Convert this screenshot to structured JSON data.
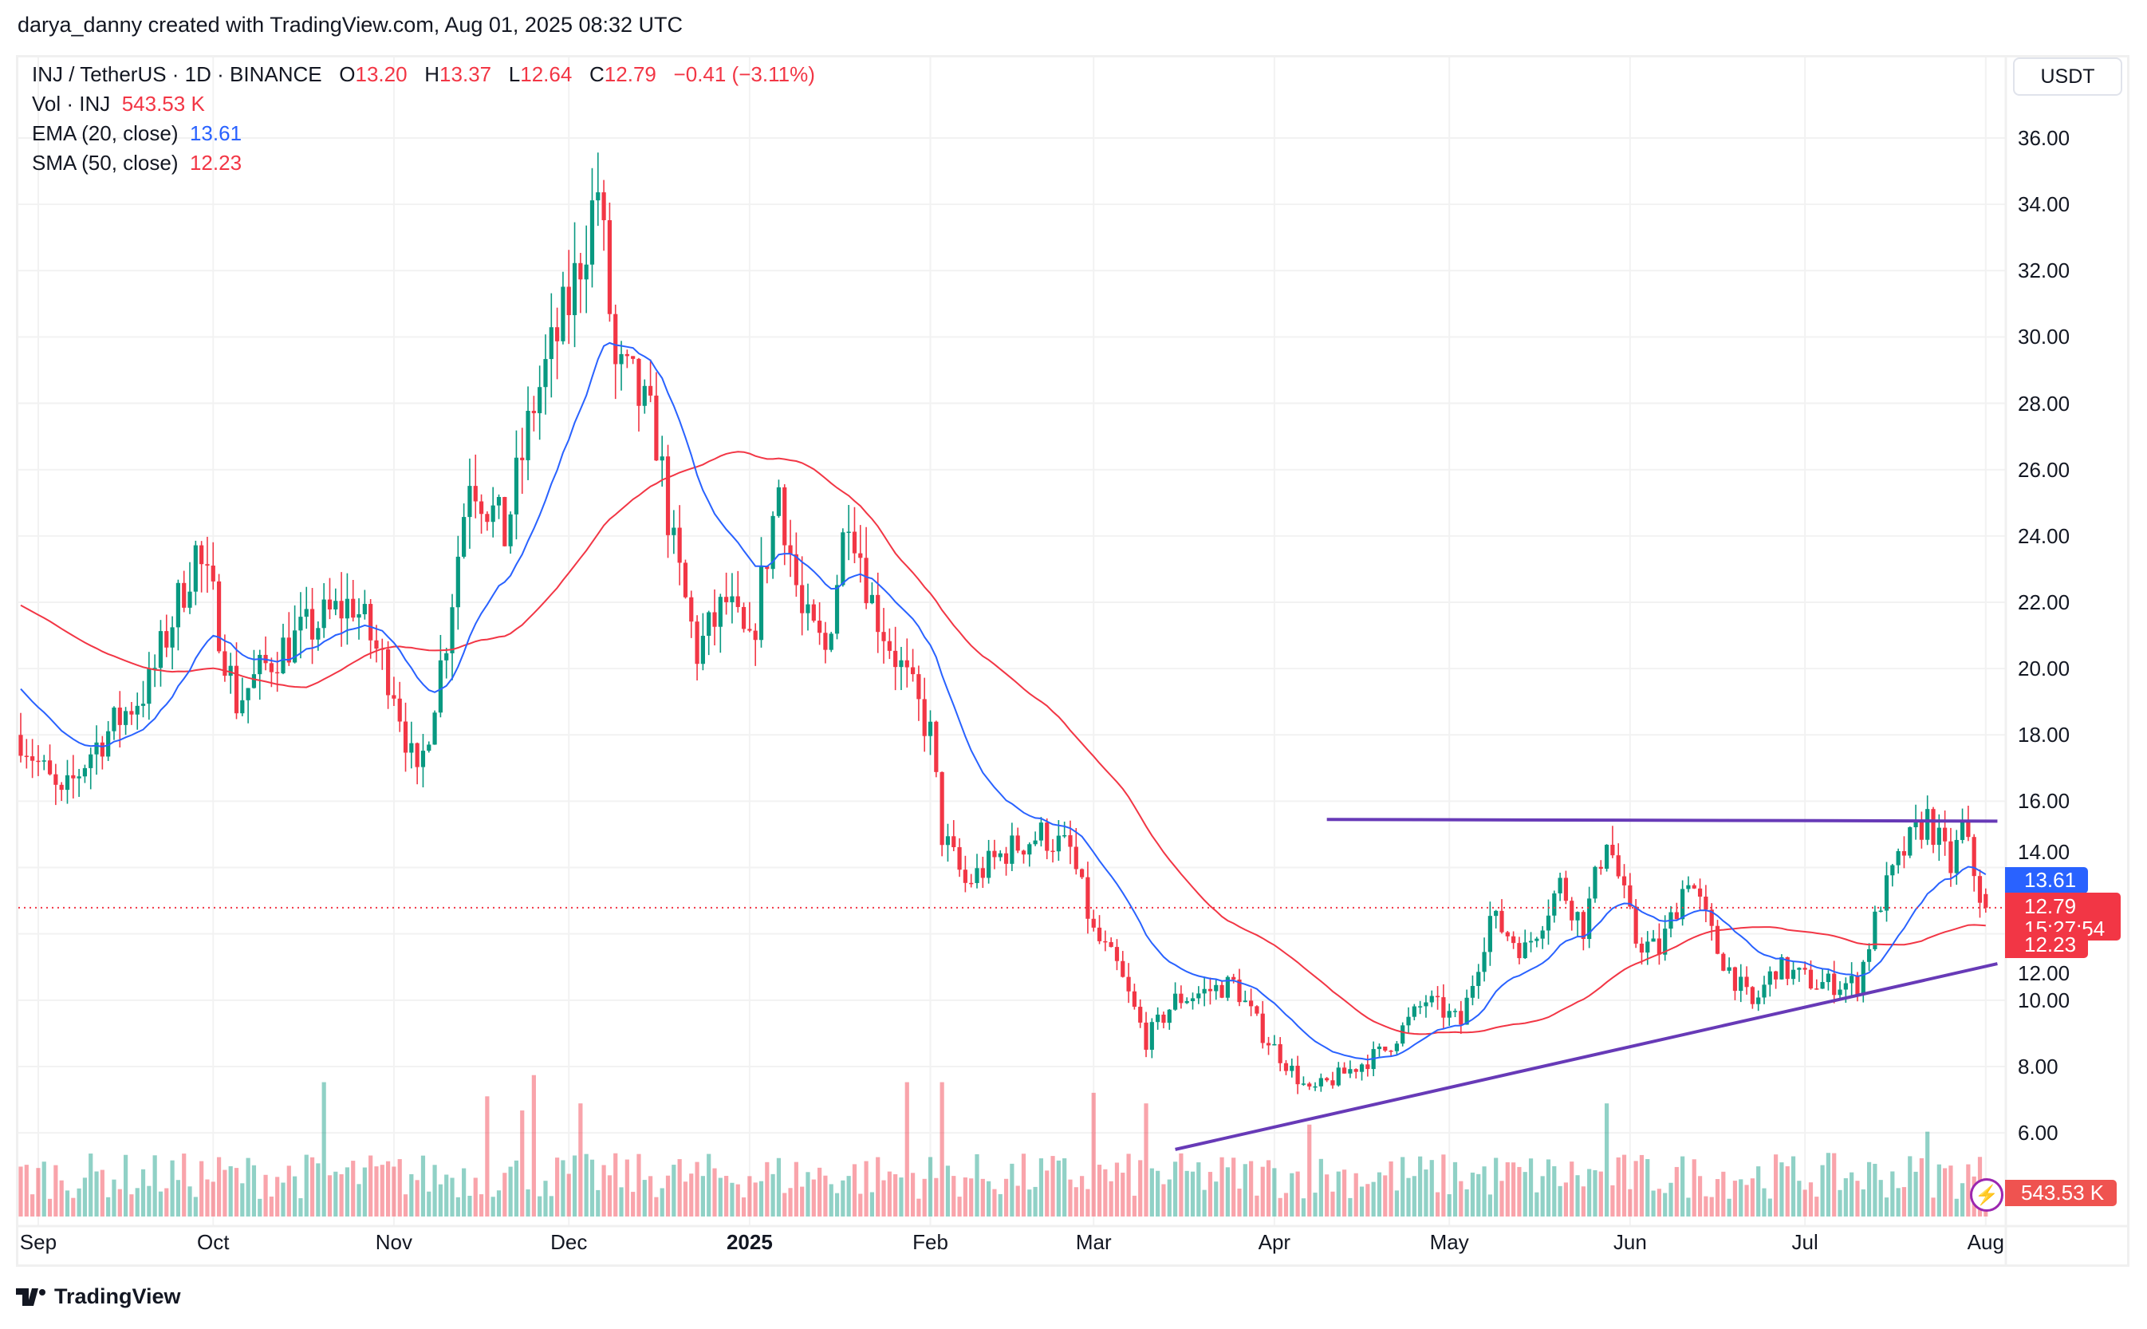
{
  "credit": "darya_danny created with TradingView.com, Aug 01, 2025 08:32 UTC",
  "legend": {
    "symbol": "INJ / TetherUS · 1D · BINANCE",
    "o_label": "O",
    "o": "13.20",
    "h_label": "H",
    "h": "13.37",
    "l_label": "L",
    "l": "12.64",
    "c_label": "C",
    "c": "12.79",
    "change": "−0.41 (−3.11%)",
    "vol_label": "Vol · INJ",
    "vol": "543.53 K",
    "ema_label": "EMA (20, close)",
    "ema": "13.61",
    "sma_label": "SMA (50, close)",
    "sma": "12.23"
  },
  "currency_button": "USDT",
  "price_tags": {
    "ema": "13.61",
    "last": "12.79",
    "countdown": "15:27:54",
    "sma": "12.23",
    "volume": "543.53 K"
  },
  "brand": "TradingView",
  "colors": {
    "up": "#089981",
    "down": "#F23645",
    "ema": "#2962FF",
    "sma": "#F23645",
    "trendline": "#673AB7"
  },
  "chart_data": {
    "type": "candlestick",
    "title": "INJ / TetherUS · 1D · BINANCE",
    "ylabel": "USDT",
    "ylim": [
      4.5,
      37.5
    ],
    "y_ticks": [
      "6.00",
      "8.00",
      "10.00",
      "12.00",
      "14.00",
      "16.00",
      "18.00",
      "20.00",
      "22.00",
      "24.00",
      "26.00",
      "28.00",
      "30.00",
      "32.00",
      "34.00",
      "36.00"
    ],
    "x_ticks": [
      {
        "label": "Sep",
        "date": "2024-09-01"
      },
      {
        "label": "Oct",
        "date": "2024-10-01"
      },
      {
        "label": "Nov",
        "date": "2024-11-01"
      },
      {
        "label": "Dec",
        "date": "2024-12-01"
      },
      {
        "label": "2025",
        "date": "2025-01-01",
        "bold": true
      },
      {
        "label": "Feb",
        "date": "2025-02-01"
      },
      {
        "label": "Mar",
        "date": "2025-03-01"
      },
      {
        "label": "Apr",
        "date": "2025-04-01"
      },
      {
        "label": "May",
        "date": "2025-05-01"
      },
      {
        "label": "Jun",
        "date": "2025-06-01"
      },
      {
        "label": "Jul",
        "date": "2025-07-01"
      },
      {
        "label": "Aug",
        "date": "2025-08-01"
      }
    ],
    "close_path": [
      [
        "2024-08-29",
        18.0
      ],
      [
        "2024-09-05",
        16.0
      ],
      [
        "2024-09-10",
        17.5
      ],
      [
        "2024-09-20",
        19.5
      ],
      [
        "2024-09-28",
        23.5
      ],
      [
        "2024-10-01",
        22.0
      ],
      [
        "2024-10-05",
        19.0
      ],
      [
        "2024-10-12",
        20.5
      ],
      [
        "2024-10-20",
        21.5
      ],
      [
        "2024-10-25",
        22.0
      ],
      [
        "2024-11-01",
        19.5
      ],
      [
        "2024-11-05",
        16.5
      ],
      [
        "2024-11-10",
        21.0
      ],
      [
        "2024-11-14",
        26.0
      ],
      [
        "2024-11-20",
        24.0
      ],
      [
        "2024-11-25",
        28.0
      ],
      [
        "2024-12-01",
        31.0
      ],
      [
        "2024-12-06",
        34.5
      ],
      [
        "2024-12-09",
        29.0
      ],
      [
        "2024-12-12",
        28.5
      ],
      [
        "2024-12-16",
        27.0
      ],
      [
        "2024-12-19",
        23.5
      ],
      [
        "2024-12-23",
        20.5
      ],
      [
        "2024-12-28",
        22.0
      ],
      [
        "2025-01-01",
        20.5
      ],
      [
        "2025-01-06",
        25.5
      ],
      [
        "2025-01-10",
        21.5
      ],
      [
        "2025-01-14",
        20.5
      ],
      [
        "2025-01-18",
        25.0
      ],
      [
        "2025-01-22",
        22.0
      ],
      [
        "2025-01-27",
        20.0
      ],
      [
        "2025-02-01",
        18.0
      ],
      [
        "2025-02-03",
        15.0
      ],
      [
        "2025-02-07",
        13.5
      ],
      [
        "2025-02-14",
        14.5
      ],
      [
        "2025-02-20",
        15.0
      ],
      [
        "2025-02-25",
        14.5
      ],
      [
        "2025-03-01",
        12.0
      ],
      [
        "2025-03-05",
        11.0
      ],
      [
        "2025-03-10",
        8.8
      ],
      [
        "2025-03-15",
        10.0
      ],
      [
        "2025-03-25",
        10.5
      ],
      [
        "2025-03-30",
        9.0
      ],
      [
        "2025-04-07",
        7.2
      ],
      [
        "2025-04-15",
        8.0
      ],
      [
        "2025-04-20",
        8.5
      ],
      [
        "2025-04-27",
        10.0
      ],
      [
        "2025-05-03",
        9.3
      ],
      [
        "2025-05-08",
        12.5
      ],
      [
        "2025-05-14",
        11.5
      ],
      [
        "2025-05-20",
        13.5
      ],
      [
        "2025-05-24",
        12.2
      ],
      [
        "2025-05-28",
        15.0
      ],
      [
        "2025-06-02",
        11.8
      ],
      [
        "2025-06-06",
        11.5
      ],
      [
        "2025-06-11",
        13.8
      ],
      [
        "2025-06-16",
        11.5
      ],
      [
        "2025-06-22",
        9.8
      ],
      [
        "2025-06-26",
        11.0
      ],
      [
        "2025-07-03",
        10.5
      ],
      [
        "2025-07-10",
        10.5
      ],
      [
        "2025-07-14",
        13.0
      ],
      [
        "2025-07-18",
        14.5
      ],
      [
        "2025-07-22",
        15.5
      ],
      [
        "2025-07-26",
        14.0
      ],
      [
        "2025-07-28",
        15.2
      ],
      [
        "2025-07-31",
        13.2
      ]
    ],
    "last_candle": {
      "date": "2025-08-01",
      "open": 13.2,
      "high": 13.37,
      "low": 12.64,
      "close": 12.79
    },
    "last_price": 12.79,
    "ema20_last": 13.61,
    "sma50_last": 12.23,
    "volume_unit": "K",
    "volume_last": 543.53,
    "volume_spikes": [
      [
        "2024-10-20",
        1900
      ],
      [
        "2024-11-17",
        1700
      ],
      [
        "2024-11-25",
        2000
      ],
      [
        "2024-11-23",
        1500
      ],
      [
        "2024-12-03",
        1600
      ],
      [
        "2025-01-28",
        1900
      ],
      [
        "2025-02-03",
        1900
      ],
      [
        "2025-03-01",
        1750
      ],
      [
        "2025-03-10",
        1600
      ],
      [
        "2025-05-28",
        1600
      ],
      [
        "2025-04-07",
        1300
      ],
      [
        "2025-07-22",
        1200
      ]
    ],
    "trendlines": [
      {
        "name": "resistance",
        "from": [
          "2025-04-10",
          15.45
        ],
        "to": [
          "2025-08-03",
          15.4
        ]
      },
      {
        "name": "support",
        "from": [
          "2025-03-15",
          5.5
        ],
        "to": [
          "2025-08-03",
          11.1
        ]
      }
    ]
  }
}
